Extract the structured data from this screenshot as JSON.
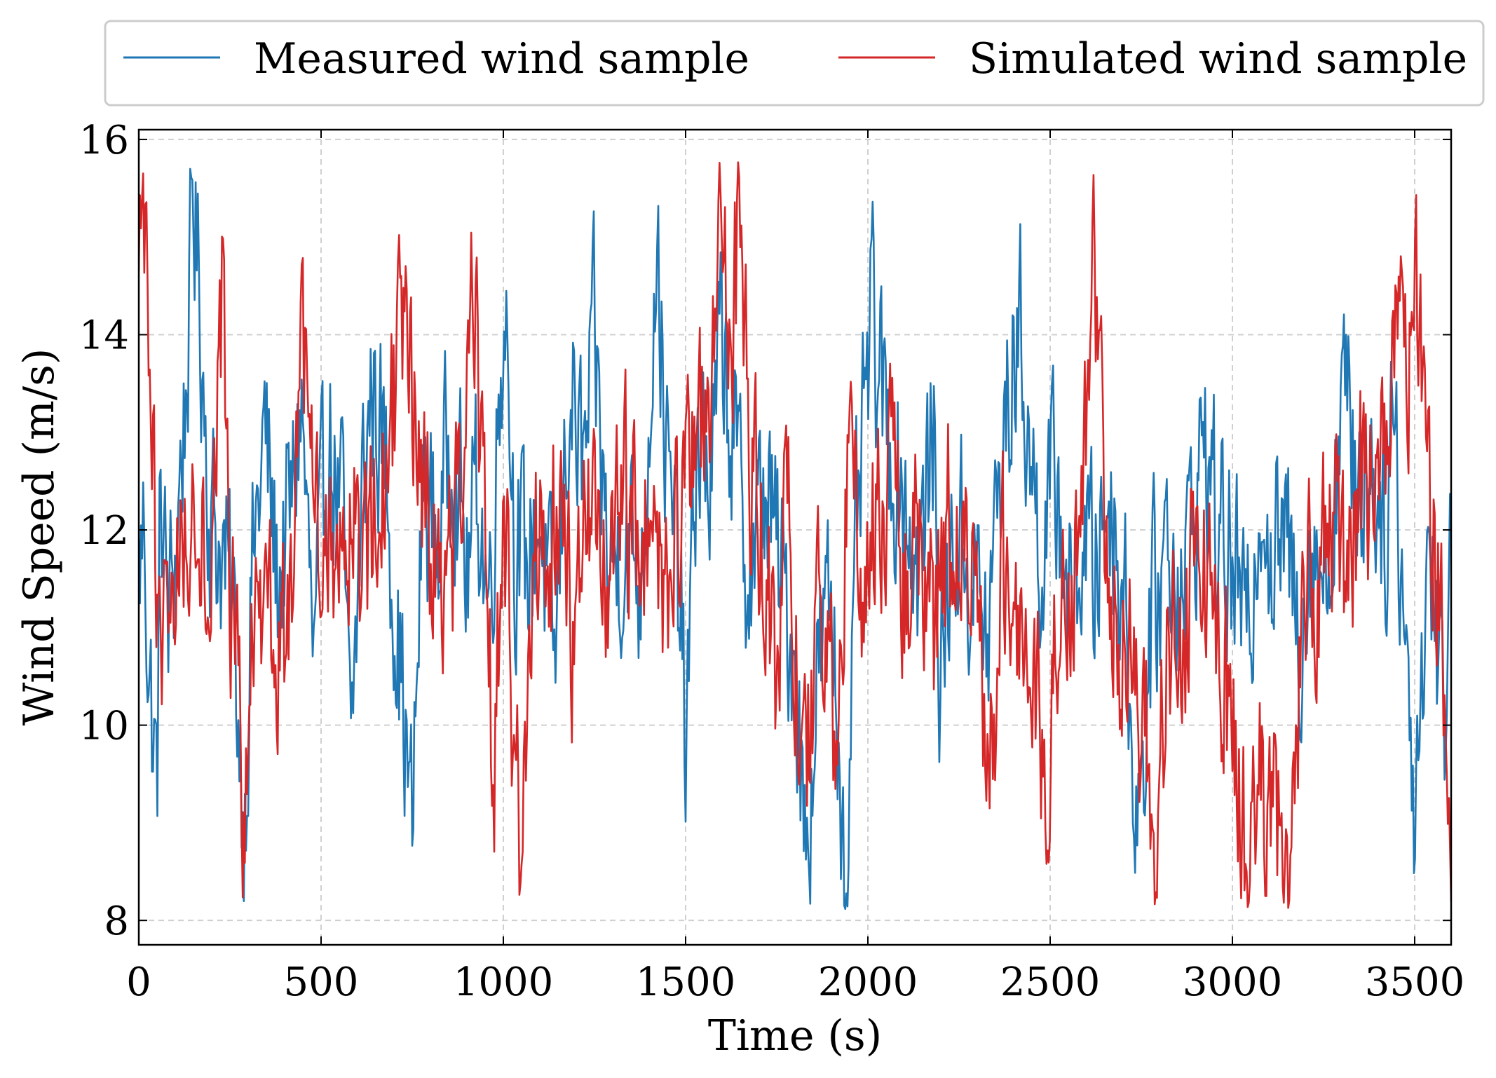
{
  "chart_data": {
    "type": "line",
    "xlabel": "Time (s)",
    "ylabel": "Wind Speed (m/s)",
    "xlim": [
      0,
      3600
    ],
    "ylim": [
      7.75,
      16.1
    ],
    "xticks": [
      0,
      500,
      1000,
      1500,
      2000,
      2500,
      3000,
      3500
    ],
    "yticks": [
      8,
      10,
      12,
      14,
      16
    ],
    "grid": true,
    "legend_position": "top",
    "legend_columns": 2,
    "series": [
      {
        "name": "Measured wind sample",
        "color": "#1f77b4",
        "sample_interval": 3,
        "anchors": [
          [
            0,
            11.5
          ],
          [
            15,
            12.1
          ],
          [
            30,
            10.4
          ],
          [
            50,
            9.3
          ],
          [
            60,
            12.5
          ],
          [
            80,
            11.0
          ],
          [
            100,
            11.8
          ],
          [
            130,
            13.5
          ],
          [
            150,
            15.4
          ],
          [
            175,
            13.8
          ],
          [
            195,
            12.2
          ],
          [
            230,
            11.8
          ],
          [
            260,
            11.0
          ],
          [
            290,
            9.1
          ],
          [
            310,
            11.5
          ],
          [
            345,
            13.0
          ],
          [
            380,
            11.5
          ],
          [
            420,
            12.2
          ],
          [
            445,
            13.4
          ],
          [
            480,
            10.5
          ],
          [
            520,
            13.0
          ],
          [
            560,
            12.0
          ],
          [
            580,
            9.6
          ],
          [
            615,
            12.5
          ],
          [
            640,
            13.5
          ],
          [
            680,
            12.6
          ],
          [
            700,
            11.5
          ],
          [
            720,
            10.5
          ],
          [
            750,
            8.8
          ],
          [
            780,
            12.5
          ],
          [
            820,
            11.8
          ],
          [
            860,
            13.2
          ],
          [
            900,
            11.5
          ],
          [
            930,
            12.5
          ],
          [
            960,
            11.2
          ],
          [
            990,
            13.5
          ],
          [
            1005,
            14.7
          ],
          [
            1030,
            12.0
          ],
          [
            1060,
            11.5
          ],
          [
            1100,
            12.2
          ],
          [
            1140,
            10.5
          ],
          [
            1180,
            13.5
          ],
          [
            1220,
            12.5
          ],
          [
            1250,
            13.8
          ],
          [
            1290,
            11.5
          ],
          [
            1330,
            12.0
          ],
          [
            1380,
            11.5
          ],
          [
            1420,
            15.1
          ],
          [
            1450,
            12.5
          ],
          [
            1490,
            11.0
          ],
          [
            1500,
            9.5
          ],
          [
            1530,
            13.0
          ],
          [
            1570,
            12.5
          ],
          [
            1600,
            14.0
          ],
          [
            1640,
            12.5
          ],
          [
            1680,
            11.5
          ],
          [
            1720,
            12.5
          ],
          [
            1760,
            11.5
          ],
          [
            1800,
            10.8
          ],
          [
            1830,
            8.7
          ],
          [
            1860,
            10.5
          ],
          [
            1900,
            11.2
          ],
          [
            1945,
            8.2
          ],
          [
            1970,
            12.0
          ],
          [
            2010,
            14.1
          ],
          [
            2050,
            13.0
          ],
          [
            2100,
            12.4
          ],
          [
            2140,
            11.5
          ],
          [
            2180,
            13.0
          ],
          [
            2200,
            10.5
          ],
          [
            2240,
            12.0
          ],
          [
            2290,
            11.5
          ],
          [
            2330,
            10.8
          ],
          [
            2360,
            12.5
          ],
          [
            2400,
            13.8
          ],
          [
            2420,
            14.0
          ],
          [
            2450,
            12.5
          ],
          [
            2480,
            11.8
          ],
          [
            2520,
            12.5
          ],
          [
            2560,
            11.0
          ],
          [
            2590,
            12.0
          ],
          [
            2620,
            11.5
          ],
          [
            2660,
            12.5
          ],
          [
            2700,
            11.5
          ],
          [
            2740,
            9.1
          ],
          [
            2780,
            11.0
          ],
          [
            2820,
            12.0
          ],
          [
            2870,
            11.5
          ],
          [
            2920,
            13.0
          ],
          [
            2960,
            12.0
          ],
          [
            3010,
            11.5
          ],
          [
            3040,
            10.7
          ],
          [
            3080,
            12.8
          ],
          [
            3110,
            11.5
          ],
          [
            3140,
            12.0
          ],
          [
            3180,
            11.0
          ],
          [
            3220,
            12.0
          ],
          [
            3260,
            11.5
          ],
          [
            3300,
            13.5
          ],
          [
            3340,
            12.5
          ],
          [
            3380,
            12.8
          ],
          [
            3420,
            12.0
          ],
          [
            3440,
            13.5
          ],
          [
            3460,
            12.0
          ],
          [
            3480,
            10.5
          ],
          [
            3500,
            9.3
          ],
          [
            3540,
            12.0
          ],
          [
            3580,
            10.0
          ],
          [
            3600,
            12.1
          ]
        ]
      },
      {
        "name": "Simulated wind sample",
        "color": "#d62728",
        "sample_interval": 3,
        "anchors": [
          [
            0,
            14.5
          ],
          [
            12,
            15.7
          ],
          [
            25,
            13.5
          ],
          [
            40,
            12.5
          ],
          [
            60,
            10.6
          ],
          [
            90,
            11.5
          ],
          [
            130,
            12.0
          ],
          [
            160,
            12.5
          ],
          [
            200,
            11.5
          ],
          [
            230,
            14.6
          ],
          [
            250,
            11.5
          ],
          [
            290,
            9.1
          ],
          [
            320,
            11.0
          ],
          [
            345,
            10.5
          ],
          [
            370,
            11.0
          ],
          [
            410,
            10.8
          ],
          [
            450,
            13.6
          ],
          [
            480,
            12.0
          ],
          [
            520,
            11.5
          ],
          [
            570,
            12.5
          ],
          [
            610,
            11.5
          ],
          [
            650,
            12.0
          ],
          [
            680,
            12.8
          ],
          [
            720,
            13.8
          ],
          [
            760,
            13.2
          ],
          [
            800,
            12.0
          ],
          [
            840,
            11.5
          ],
          [
            890,
            12.5
          ],
          [
            920,
            14.4
          ],
          [
            950,
            11.5
          ],
          [
            975,
            9.3
          ],
          [
            1000,
            12.5
          ],
          [
            1025,
            10.0
          ],
          [
            1050,
            8.7
          ],
          [
            1080,
            12.0
          ],
          [
            1110,
            11.5
          ],
          [
            1150,
            12.5
          ],
          [
            1190,
            11.0
          ],
          [
            1230,
            12.0
          ],
          [
            1270,
            11.5
          ],
          [
            1310,
            12.0
          ],
          [
            1350,
            12.5
          ],
          [
            1400,
            12.0
          ],
          [
            1440,
            11.5
          ],
          [
            1480,
            12.0
          ],
          [
            1530,
            12.5
          ],
          [
            1570,
            13.5
          ],
          [
            1590,
            15.6
          ],
          [
            1620,
            13.5
          ],
          [
            1650,
            15.4
          ],
          [
            1680,
            12.5
          ],
          [
            1720,
            11.5
          ],
          [
            1750,
            10.0
          ],
          [
            1780,
            12.5
          ],
          [
            1800,
            11.0
          ],
          [
            1830,
            9.2
          ],
          [
            1860,
            11.0
          ],
          [
            1890,
            10.5
          ],
          [
            1920,
            9.5
          ],
          [
            1950,
            13.8
          ],
          [
            1980,
            11.5
          ],
          [
            2020,
            12.0
          ],
          [
            2060,
            12.5
          ],
          [
            2100,
            11.5
          ],
          [
            2140,
            12.0
          ],
          [
            2180,
            11.0
          ],
          [
            2220,
            12.0
          ],
          [
            2260,
            11.5
          ],
          [
            2300,
            11.0
          ],
          [
            2330,
            9.3
          ],
          [
            2370,
            11.5
          ],
          [
            2410,
            10.5
          ],
          [
            2450,
            10.8
          ],
          [
            2490,
            9.5
          ],
          [
            2530,
            11.5
          ],
          [
            2570,
            12.0
          ],
          [
            2600,
            13.5
          ],
          [
            2620,
            15.1
          ],
          [
            2650,
            12.0
          ],
          [
            2690,
            11.0
          ],
          [
            2720,
            10.5
          ],
          [
            2760,
            10.0
          ],
          [
            2790,
            8.2
          ],
          [
            2820,
            11.0
          ],
          [
            2860,
            10.5
          ],
          [
            2890,
            12.0
          ],
          [
            2930,
            11.5
          ],
          [
            2960,
            11.0
          ],
          [
            2990,
            10.0
          ],
          [
            3020,
            9.5
          ],
          [
            3045,
            8.2
          ],
          [
            3070,
            9.5
          ],
          [
            3100,
            8.6
          ],
          [
            3130,
            9.0
          ],
          [
            3160,
            8.2
          ],
          [
            3190,
            11.0
          ],
          [
            3230,
            11.5
          ],
          [
            3270,
            12.0
          ],
          [
            3310,
            11.5
          ],
          [
            3350,
            12.5
          ],
          [
            3390,
            12.0
          ],
          [
            3420,
            13.0
          ],
          [
            3450,
            14.5
          ],
          [
            3480,
            13.5
          ],
          [
            3500,
            14.9
          ],
          [
            3530,
            12.5
          ],
          [
            3560,
            11.5
          ],
          [
            3580,
            10.5
          ],
          [
            3600,
            9.3
          ]
        ]
      }
    ]
  }
}
